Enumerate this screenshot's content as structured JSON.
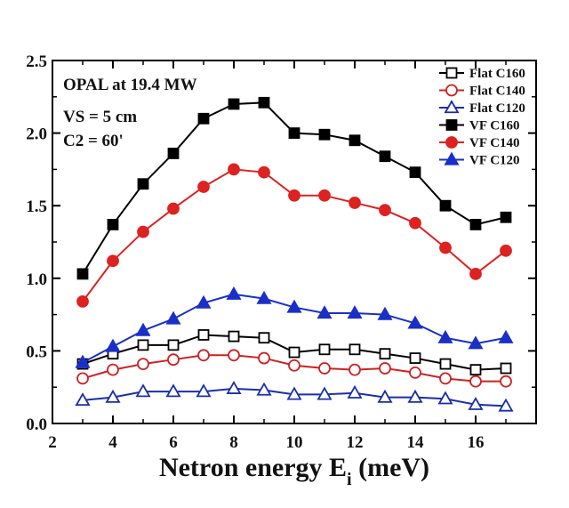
{
  "chart_data": {
    "type": "line",
    "xlabel": "Netron energy E",
    "xlabel_sub": "i",
    "xlabel_unit": " (meV)",
    "ylabel": "",
    "xlim": [
      2,
      18
    ],
    "ylim": [
      0,
      2.5
    ],
    "xticks": [
      2,
      4,
      6,
      8,
      10,
      12,
      14,
      16
    ],
    "yticks": [
      0.0,
      0.5,
      1.0,
      1.5,
      2.0,
      2.5
    ],
    "ytick_labels": [
      "0.0",
      "0.5",
      "1.0",
      "1.5",
      "2.0",
      "2.5"
    ],
    "annotations": [
      "OPAL at 19.4 MW",
      "VS = 5 cm",
      "C2 = 60'"
    ],
    "legend_position": "top-right",
    "grid": false,
    "x": [
      3,
      4,
      5,
      6,
      7,
      8,
      9,
      10,
      11,
      12,
      13,
      14,
      15,
      16,
      17
    ],
    "series": [
      {
        "name": "Flat C160",
        "color": "#000000",
        "marker": "square-open",
        "values": [
          0.41,
          0.48,
          0.54,
          0.54,
          0.61,
          0.6,
          0.59,
          0.49,
          0.51,
          0.51,
          0.48,
          0.45,
          0.41,
          0.37,
          0.38
        ]
      },
      {
        "name": "Flat C140",
        "color": "#cc2222",
        "marker": "circle-open",
        "values": [
          0.31,
          0.37,
          0.41,
          0.44,
          0.47,
          0.47,
          0.45,
          0.4,
          0.38,
          0.37,
          0.38,
          0.35,
          0.31,
          0.29,
          0.29
        ]
      },
      {
        "name": "Flat C120",
        "color": "#1a2fa8",
        "marker": "triangle-open",
        "values": [
          0.16,
          0.18,
          0.22,
          0.22,
          0.22,
          0.24,
          0.23,
          0.2,
          0.2,
          0.21,
          0.18,
          0.18,
          0.17,
          0.13,
          0.12
        ]
      },
      {
        "name": "VF C160",
        "color": "#000000",
        "marker": "square-filled",
        "values": [
          1.03,
          1.37,
          1.65,
          1.86,
          2.1,
          2.2,
          2.21,
          2.0,
          1.99,
          1.95,
          1.84,
          1.73,
          1.5,
          1.37,
          1.42
        ]
      },
      {
        "name": "VF C140",
        "color": "#dd2222",
        "marker": "circle-filled",
        "values": [
          0.84,
          1.12,
          1.32,
          1.48,
          1.63,
          1.75,
          1.73,
          1.57,
          1.57,
          1.52,
          1.47,
          1.38,
          1.21,
          1.03,
          1.19
        ]
      },
      {
        "name": "VF C120",
        "color": "#1a2fc8",
        "marker": "triangle-filled",
        "values": [
          0.42,
          0.53,
          0.64,
          0.72,
          0.83,
          0.89,
          0.86,
          0.8,
          0.76,
          0.76,
          0.75,
          0.69,
          0.59,
          0.55,
          0.59
        ]
      }
    ]
  }
}
